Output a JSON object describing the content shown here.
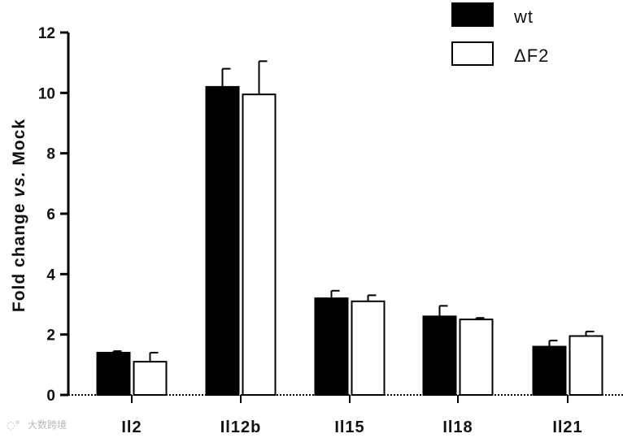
{
  "chart_data": {
    "type": "bar",
    "title": "",
    "xlabel": "",
    "ylabel": "Fold change vs. Mock",
    "ylabel_parts": [
      "Fold change ",
      "vs.",
      " Mock"
    ],
    "ylim": [
      0,
      12
    ],
    "yticks": [
      0,
      2,
      4,
      6,
      8,
      10,
      12
    ],
    "categories": [
      "Il2",
      "Il12b",
      "Il15",
      "Il18",
      "Il21"
    ],
    "series": [
      {
        "name": "wt",
        "color": "#000000",
        "values": [
          1.4,
          10.2,
          3.2,
          2.6,
          1.6
        ],
        "errors": [
          0.05,
          0.6,
          0.25,
          0.35,
          0.2
        ]
      },
      {
        "name": "ΔF2",
        "color": "#ffffff",
        "values": [
          1.1,
          9.95,
          3.1,
          2.5,
          1.95
        ],
        "errors": [
          0.3,
          1.1,
          0.2,
          0.05,
          0.15
        ]
      }
    ],
    "legend_position": "top-right",
    "grid": false
  },
  "watermark": "大数跨境"
}
